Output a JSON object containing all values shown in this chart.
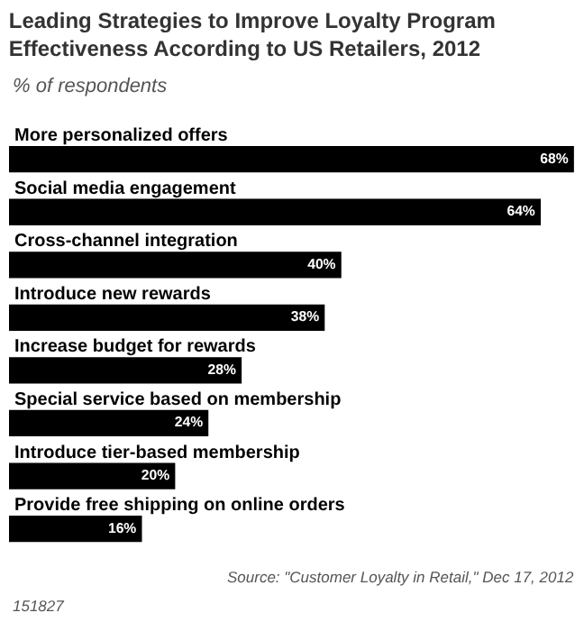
{
  "chart_data": {
    "type": "bar",
    "orientation": "horizontal",
    "title": "Leading Strategies to Improve Loyalty Program Effectiveness According to US Retailers, 2012",
    "subtitle": "% of respondents",
    "categories": [
      "More personalized offers",
      "Social media engagement",
      "Cross-channel integration",
      "Introduce new rewards",
      "Increase budget for rewards",
      "Special service based on membership",
      "Introduce tier-based membership",
      "Provide free shipping on online orders"
    ],
    "values": [
      68,
      64,
      40,
      38,
      28,
      24,
      20,
      16
    ],
    "value_labels": [
      "68%",
      "64%",
      "40%",
      "38%",
      "28%",
      "24%",
      "20%",
      "16%"
    ],
    "color": "#000000",
    "annotations": [
      "Source: \"Customer Loyalty in Retail,\" Dec 17, 2012",
      "151827"
    ]
  }
}
